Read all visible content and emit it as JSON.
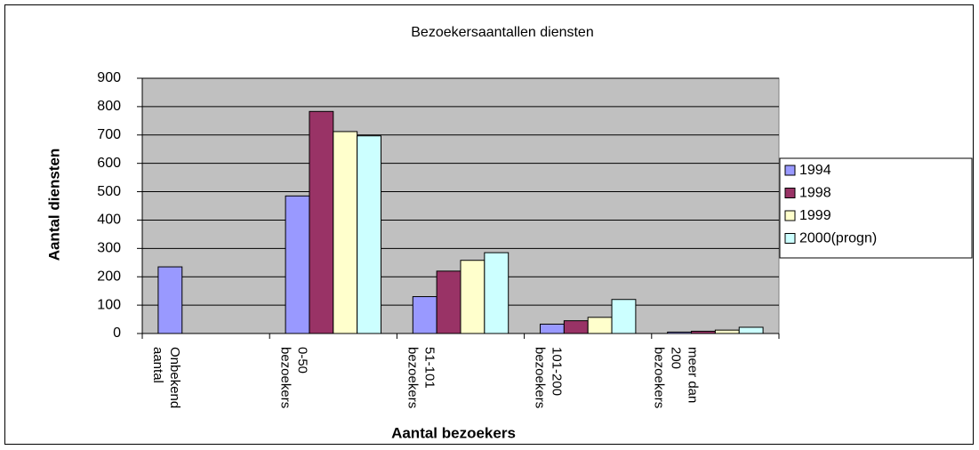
{
  "chart_data": {
    "type": "bar",
    "title": "Bezoekersaantallen diensten",
    "x_label": "Aantal bezoekers",
    "y_label": "Aantal diensten",
    "categories": [
      [
        "Onbekend",
        "aantal"
      ],
      [
        "0-50",
        "bezoekers"
      ],
      [
        "51-101",
        "bezoekers"
      ],
      [
        "101-200",
        "bezoekers"
      ],
      [
        "meer dan",
        "200",
        "bezoekers"
      ]
    ],
    "series": [
      {
        "name": "1994",
        "color": "#9999ff",
        "values": [
          235,
          485,
          130,
          33,
          5
        ]
      },
      {
        "name": "1998",
        "color": "#993366",
        "values": [
          null,
          783,
          220,
          45,
          8
        ]
      },
      {
        "name": "1999",
        "color": "#ffffcc",
        "values": [
          null,
          712,
          258,
          57,
          12
        ]
      },
      {
        "name": "2000(progn)",
        "color": "#ccffff",
        "values": [
          null,
          697,
          285,
          120,
          22
        ]
      }
    ],
    "ylim": [
      0,
      900
    ],
    "yticks": [
      0,
      100,
      200,
      300,
      400,
      500,
      600,
      700,
      800,
      900
    ],
    "grid": true,
    "legend": "right",
    "plot_background": "#c0c0c0"
  }
}
